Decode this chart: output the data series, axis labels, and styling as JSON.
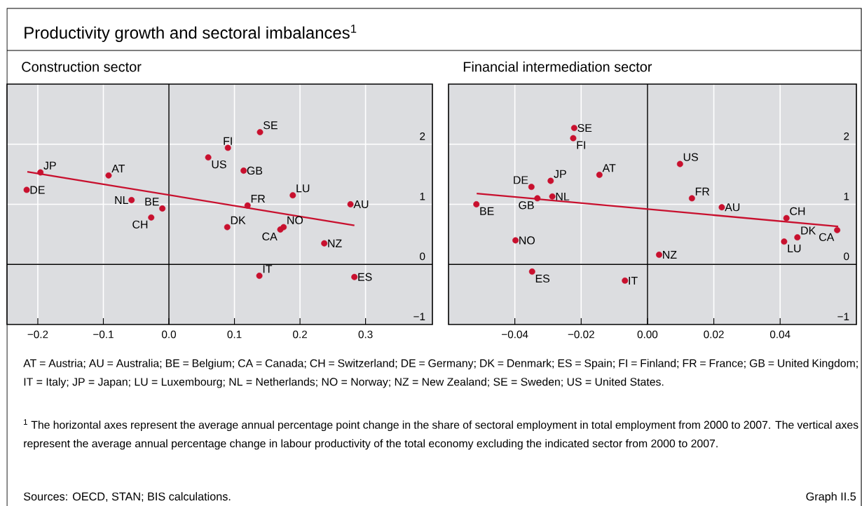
{
  "chart_data": [
    {
      "type": "other",
      "title": "Productivity growth and sectoral imbalances$^{1}$",
      "annotations": [
        "AT = Austria; AU = Australia; BE = Belgium; CA = Canada; CH = Switzerland; DE = Germany; DK = Denmark; ES = Spain; FI = Finland; FR = France; GB = United Kingdom; IT = Italy; JP = Japan; LU = Luxembourg; NL = Netherlands; NO = Norway; NZ = New Zealand; SE = Sweden; US = United States.",
        "$^{1}$ The horizontal axes represent the average annual percentage point change in the share of sectoral employment in total employment from 2000 to 2007. The vertical axes represent the average annual percentage change in labour productivity of the total economy excluding the indicated sector from 2000 to 2007.",
        "Sources: OECD, STAN; BIS calculations.",
        "Graph II.5"
      ]
    },
    {
      "type": "scatter",
      "title": "Construction sector",
      "grid": true,
      "xlim": [
        -0.247,
        0.402
      ],
      "ylim": [
        -1,
        3
      ],
      "xticks": [
        {
          "value": -0.2,
          "label": "−0.2"
        },
        {
          "value": -0.1,
          "label": "−0.1"
        },
        {
          "value": 0.0,
          "label": "0.0"
        },
        {
          "value": 0.1,
          "label": "0.1"
        },
        {
          "value": 0.2,
          "label": "0.2"
        },
        {
          "value": 0.3,
          "label": "0.3"
        }
      ],
      "yticks": [
        {
          "value": -1,
          "label": "−1"
        },
        0,
        1,
        2
      ],
      "series": [
        {
          "type": "scatter",
          "color": "#c8102e",
          "x": [
            -0.196,
            -0.217,
            -0.092,
            -0.057,
            -0.01,
            -0.027,
            0.06,
            0.09,
            0.139,
            0.114,
            0.12,
            0.189,
            0.277,
            0.089,
            0.17,
            0.175,
            0.237,
            0.138,
            0.283
          ],
          "values": [
            1.53,
            1.24,
            1.48,
            1.07,
            0.93,
            0.78,
            1.78,
            1.94,
            2.2,
            1.56,
            0.98,
            1.15,
            1.0,
            0.62,
            0.58,
            0.62,
            0.35,
            -0.19,
            -0.21
          ]
        },
        {
          "type": "line",
          "color": "#c8102e",
          "x": [
            -0.216,
            0.283
          ],
          "values": [
            1.54,
            0.65
          ]
        }
      ],
      "annotations": [
        {
          "text": "JP",
          "x": -0.196,
          "y": 1.53
        },
        {
          "text": "DE",
          "x": -0.217,
          "y": 1.24
        },
        {
          "text": "AT",
          "x": -0.092,
          "y": 1.48
        },
        {
          "text": "NL",
          "x": -0.057,
          "y": 1.07
        },
        {
          "text": "BE",
          "x": -0.01,
          "y": 0.93
        },
        {
          "text": "CH",
          "x": -0.027,
          "y": 0.78
        },
        {
          "text": "US",
          "x": 0.06,
          "y": 1.78
        },
        {
          "text": "FI",
          "x": 0.09,
          "y": 1.94
        },
        {
          "text": "SE",
          "x": 0.139,
          "y": 2.2
        },
        {
          "text": "GB",
          "x": 0.114,
          "y": 1.56
        },
        {
          "text": "FR",
          "x": 0.12,
          "y": 0.98
        },
        {
          "text": "LU",
          "x": 0.189,
          "y": 1.15
        },
        {
          "text": "AU",
          "x": 0.277,
          "y": 1.0
        },
        {
          "text": "DK",
          "x": 0.089,
          "y": 0.62
        },
        {
          "text": "CA",
          "x": 0.17,
          "y": 0.58
        },
        {
          "text": "NO",
          "x": 0.175,
          "y": 0.62
        },
        {
          "text": "NZ",
          "x": 0.237,
          "y": 0.35
        },
        {
          "text": "IT",
          "x": 0.138,
          "y": -0.19
        },
        {
          "text": "ES",
          "x": 0.283,
          "y": -0.21
        }
      ]
    },
    {
      "type": "scatter",
      "title": "Financial intermediation sector",
      "grid": true,
      "xlim": [
        -0.06,
        0.063
      ],
      "ylim": [
        -1,
        3
      ],
      "xticks": [
        {
          "value": -0.04,
          "label": "−0.04"
        },
        {
          "value": -0.02,
          "label": "−0.02"
        },
        {
          "value": 0.0,
          "label": "0.00"
        },
        {
          "value": 0.02,
          "label": "0.02"
        },
        {
          "value": 0.04,
          "label": "0.04"
        }
      ],
      "yticks": [
        {
          "value": -1,
          "label": "−1"
        },
        0,
        1,
        2
      ],
      "series": [
        {
          "type": "scatter",
          "color": "#c8102e",
          "x": [
            -0.0221,
            -0.0224,
            0.0098,
            -0.0145,
            -0.0292,
            -0.035,
            -0.0287,
            -0.0332,
            -0.0516,
            0.0134,
            0.0224,
            0.0419,
            0.0452,
            0.0412,
            0.0572,
            -0.0398,
            0.0035,
            -0.0348,
            -0.0068
          ],
          "values": [
            2.27,
            2.1,
            1.67,
            1.49,
            1.39,
            1.29,
            1.13,
            1.1,
            1.0,
            1.1,
            0.95,
            0.77,
            0.45,
            0.38,
            0.57,
            0.4,
            0.16,
            -0.12,
            -0.27
          ]
        },
        {
          "type": "line",
          "color": "#c8102e",
          "x": [
            -0.0515,
            0.0575
          ],
          "values": [
            1.18,
            0.63
          ]
        }
      ],
      "annotations": [
        {
          "text": "SE",
          "x": -0.0221,
          "y": 2.27
        },
        {
          "text": "FI",
          "x": -0.0224,
          "y": 2.1
        },
        {
          "text": "US",
          "x": 0.0098,
          "y": 1.67
        },
        {
          "text": "AT",
          "x": -0.0145,
          "y": 1.49
        },
        {
          "text": "JP",
          "x": -0.0292,
          "y": 1.39
        },
        {
          "text": "DE",
          "x": -0.035,
          "y": 1.29
        },
        {
          "text": "NL",
          "x": -0.0287,
          "y": 1.13
        },
        {
          "text": "GB",
          "x": -0.0332,
          "y": 1.1
        },
        {
          "text": "BE",
          "x": -0.0516,
          "y": 1.0
        },
        {
          "text": "FR",
          "x": 0.0134,
          "y": 1.1
        },
        {
          "text": "AU",
          "x": 0.0224,
          "y": 0.95
        },
        {
          "text": "CH",
          "x": 0.0419,
          "y": 0.77
        },
        {
          "text": "DK",
          "x": 0.0452,
          "y": 0.45
        },
        {
          "text": "LU",
          "x": 0.0412,
          "y": 0.38
        },
        {
          "text": "CA",
          "x": 0.0572,
          "y": 0.57
        },
        {
          "text": "NO",
          "x": -0.0398,
          "y": 0.4
        },
        {
          "text": "NZ",
          "x": 0.0035,
          "y": 0.16
        },
        {
          "text": "ES",
          "x": -0.0348,
          "y": -0.12
        },
        {
          "text": "IT",
          "x": -0.0068,
          "y": -0.27
        }
      ]
    }
  ]
}
